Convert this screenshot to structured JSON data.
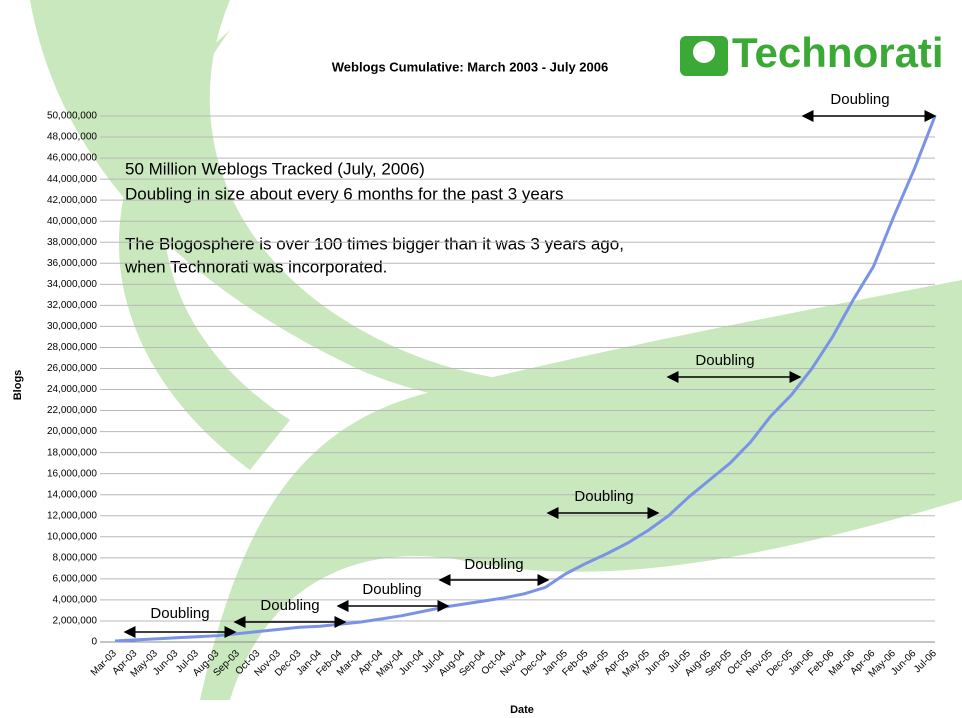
{
  "chart_data": {
    "type": "line",
    "title": "Weblogs Cumulative: March 2003 - July 2006",
    "logo": "Technorati",
    "y_label": "Blogs",
    "x_label": "Date",
    "notes": [
      "50 Million Weblogs Tracked (July, 2006)",
      "Doubling in size about every  6 months for the past 3 years",
      "The Blogosphere is over 100 times bigger than it was 3 years ago,",
      "when Technorati was incorporated."
    ],
    "annotations": [
      "Doubling",
      "Doubling",
      "Doubling",
      "Doubling",
      "Doubling",
      "Doubling",
      "Doubling"
    ],
    "categories": [
      "Mar-03",
      "Apr-03",
      "May-03",
      "Jun-03",
      "Jul-03",
      "Aug-03",
      "Sep-03",
      "Oct-03",
      "Nov-03",
      "Dec-03",
      "Jan-04",
      "Feb-04",
      "Mar-04",
      "Apr-04",
      "May-04",
      "Jun-04",
      "Jul-04",
      "Aug-04",
      "Sep-04",
      "Oct-04",
      "Nov-04",
      "Dec-04",
      "Jan-05",
      "Feb-05",
      "Mar-05",
      "Apr-05",
      "May-05",
      "Jun-05",
      "Jul-05",
      "Aug-05",
      "Sep-05",
      "Oct-05",
      "Nov-05",
      "Dec-05",
      "Jan-06",
      "Feb-06",
      "Mar-06",
      "Apr-06",
      "May-06",
      "Jun-06",
      "Jul-06"
    ],
    "values": [
      100000,
      200000,
      300000,
      400000,
      500000,
      600000,
      800000,
      1000000,
      1200000,
      1400000,
      1500000,
      1700000,
      1900000,
      2200000,
      2500000,
      2900000,
      3300000,
      3600000,
      3900000,
      4200000,
      4600000,
      5200000,
      6500000,
      7500000,
      8400000,
      9400000,
      10600000,
      12000000,
      13800000,
      15400000,
      17000000,
      19000000,
      21500000,
      23500000,
      26000000,
      29000000,
      32500000,
      35700000,
      40500000,
      45000000,
      50000000
    ],
    "color": "#7b93e6",
    "ylim": [
      0,
      50000000
    ],
    "yticks": [
      0,
      {
        "value": 2000000,
        "label": "2,000,000"
      },
      {
        "value": 4000000,
        "label": "4,000,000"
      },
      {
        "value": 6000000,
        "label": "6,000,000"
      },
      {
        "value": 8000000,
        "label": "8,000,000"
      },
      {
        "value": 10000000,
        "label": "10,000,000"
      },
      {
        "value": 12000000,
        "label": "12,000,000"
      },
      {
        "value": 14000000,
        "label": "14,000,000"
      },
      {
        "value": 16000000,
        "label": "16,000,000"
      },
      {
        "value": 18000000,
        "label": "18,000,000"
      },
      {
        "value": 20000000,
        "label": "20,000,000"
      },
      {
        "value": 22000000,
        "label": "22,000,000"
      },
      {
        "value": 24000000,
        "label": "24,000,000"
      },
      {
        "value": 26000000,
        "label": "26,000,000"
      },
      {
        "value": 28000000,
        "label": "28,000,000"
      },
      {
        "value": 30000000,
        "label": "30,000,000"
      },
      {
        "value": 32000000,
        "label": "32,000,000"
      },
      {
        "value": 34000000,
        "label": "34,000,000"
      },
      {
        "value": 36000000,
        "label": "36,000,000"
      },
      {
        "value": 38000000,
        "label": "38,000,000"
      },
      {
        "value": 40000000,
        "label": "40,000,000"
      },
      {
        "value": 42000000,
        "label": "42,000,000"
      },
      {
        "value": 44000000,
        "label": "44,000,000"
      },
      {
        "value": 46000000,
        "label": "46,000,000"
      },
      {
        "value": 48000000,
        "label": "48,000,000"
      },
      {
        "value": 50000000,
        "label": "50,000,000"
      }
    ],
    "grid": true
  }
}
